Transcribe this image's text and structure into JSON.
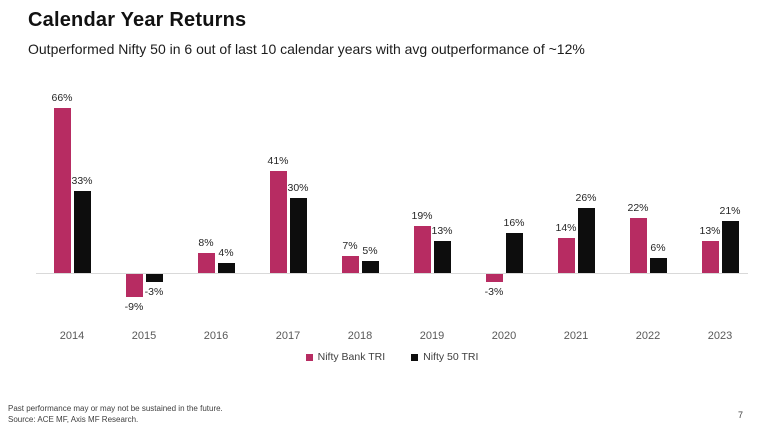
{
  "page": {
    "background": "#ffffff"
  },
  "header": {
    "title": "Calendar Year Returns",
    "subtitle": "Outperformed Nifty 50 in 6 out of last 10 calendar years with avg outperformance of ~12%"
  },
  "chart_data": {
    "type": "bar",
    "title": "Calendar Year Returns",
    "categories": [
      "2014",
      "2015",
      "2016",
      "2017",
      "2018",
      "2019",
      "2020",
      "2021",
      "2022",
      "2023"
    ],
    "series": [
      {
        "name": "Nifty Bank TRI",
        "color": "#b72c62",
        "values": [
          66,
          -9,
          8,
          41,
          7,
          19,
          -3,
          14,
          22,
          13
        ]
      },
      {
        "name": "Nifty 50 TRI",
        "color": "#0d0d0d",
        "values": [
          33,
          -3,
          4,
          30,
          5,
          13,
          16,
          26,
          6,
          21
        ]
      }
    ],
    "value_suffix": "%",
    "data_labels": true,
    "grid": false,
    "axis_line_color": "#d9d9d9",
    "legend_position": "bottom",
    "xlabel": "",
    "ylabel": "",
    "ylim": [
      -15,
      70
    ]
  },
  "footer": {
    "disclaimer": "Past performance may or may not be sustained in the future.",
    "source": "Source: ACE MF, Axis MF Research.",
    "page_number": "7"
  }
}
